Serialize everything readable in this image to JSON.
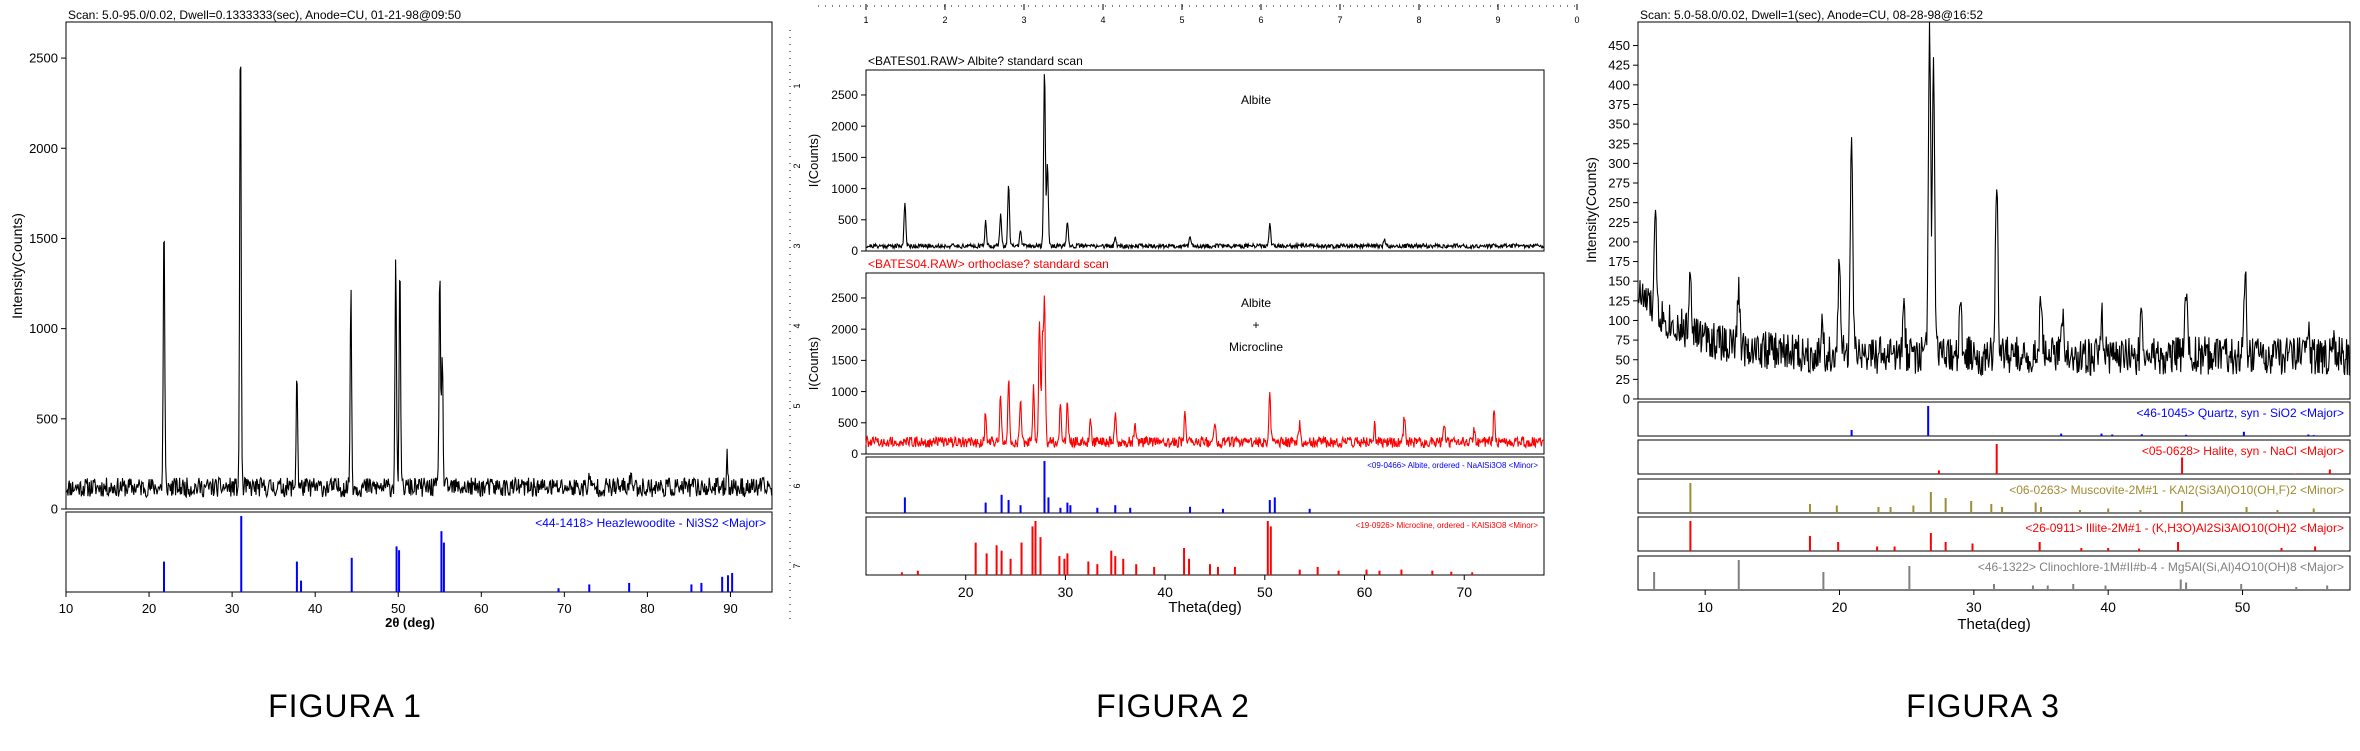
{
  "captions": [
    "FIGURA 1",
    "FIGURA 2",
    "FIGURA 3"
  ],
  "colors": {
    "black": "#000000",
    "blue": "#0000ff",
    "red": "#ff0000",
    "olive": "#a08c32",
    "gray": "#808080"
  },
  "chart_data": [
    {
      "type": "line",
      "header": "Scan: 5.0-95.0/0.02, Dwell=0.1333333(sec), Anode=CU, 01-21-98@09:50",
      "xlabel": "2θ (deg)",
      "ylabel": "Intensity(Counts)",
      "xlim": [
        10,
        95
      ],
      "ylim": [
        0,
        2700
      ],
      "xticks": [
        "10",
        "20",
        "30",
        "40",
        "50",
        "60",
        "70",
        "80",
        "90"
      ],
      "yticks": [
        "0",
        "500",
        "1000",
        "1500",
        "2000",
        "2500"
      ],
      "baseline": 120,
      "peaks": [
        {
          "x": 21.8,
          "y": 1620
        },
        {
          "x": 31.0,
          "y": 2720
        },
        {
          "x": 37.8,
          "y": 780
        },
        {
          "x": 44.3,
          "y": 1230
        },
        {
          "x": 49.7,
          "y": 1450
        },
        {
          "x": 50.2,
          "y": 1340
        },
        {
          "x": 55.0,
          "y": 1350
        },
        {
          "x": 55.3,
          "y": 900
        },
        {
          "x": 89.6,
          "y": 320
        },
        {
          "x": 78.0,
          "y": 220
        },
        {
          "x": 73.0,
          "y": 180
        }
      ],
      "reference_panels": [
        {
          "label": "<44-1418> Heazlewoodite - Ni3S2 <Major>",
          "color": "#0000ff",
          "sticks": [
            [
              21.8,
              40
            ],
            [
              31.1,
              100
            ],
            [
              37.8,
              40
            ],
            [
              38.3,
              15
            ],
            [
              44.4,
              45
            ],
            [
              49.8,
              60
            ],
            [
              50.1,
              55
            ],
            [
              55.2,
              80
            ],
            [
              55.5,
              65
            ],
            [
              69.3,
              5
            ],
            [
              73.0,
              10
            ],
            [
              77.8,
              12
            ],
            [
              85.3,
              10
            ],
            [
              86.5,
              12
            ],
            [
              89.0,
              20
            ],
            [
              89.7,
              22
            ],
            [
              90.2,
              25
            ]
          ]
        }
      ]
    },
    {
      "type": "line",
      "top_axis_ticks": [
        "1",
        "2",
        "3",
        "4",
        "5",
        "6",
        "7",
        "8",
        "9",
        "0"
      ],
      "right_axis_ticks": [
        "1",
        "2",
        "3",
        "4",
        "5",
        "6",
        "7"
      ],
      "xlabel": "Theta(deg)",
      "xlim": [
        10,
        78
      ],
      "xticks": [
        "20",
        "30",
        "40",
        "50",
        "60",
        "70"
      ],
      "panels": [
        {
          "header": "<BATES01.RAW> Albite? standard scan",
          "annotation": [
            "Albite"
          ],
          "color": "#000000",
          "ylabel": "I(Counts)",
          "ylim": [
            0,
            2900
          ],
          "yticks": [
            "0",
            "500",
            "1000",
            "1500",
            "2000",
            "2500"
          ],
          "baseline": 80,
          "peaks": [
            {
              "x": 13.9,
              "y": 800
            },
            {
              "x": 22.0,
              "y": 500
            },
            {
              "x": 23.5,
              "y": 600
            },
            {
              "x": 24.3,
              "y": 1080
            },
            {
              "x": 25.5,
              "y": 350
            },
            {
              "x": 27.9,
              "y": 2900
            },
            {
              "x": 28.2,
              "y": 1400
            },
            {
              "x": 30.2,
              "y": 450
            },
            {
              "x": 35.0,
              "y": 230
            },
            {
              "x": 42.5,
              "y": 250
            },
            {
              "x": 50.5,
              "y": 430
            },
            {
              "x": 62.0,
              "y": 180
            }
          ]
        },
        {
          "header": "<BATES04.RAW> orthoclase? standard scan",
          "annotation": [
            "Albite",
            "+",
            "Microcline"
          ],
          "color": "#ff0000",
          "ylabel": "I(Counts)",
          "ylim": [
            0,
            2900
          ],
          "yticks": [
            "0",
            "500",
            "1000",
            "1500",
            "2000",
            "2500"
          ],
          "baseline": 190,
          "peaks": [
            {
              "x": 22.0,
              "y": 700
            },
            {
              "x": 23.5,
              "y": 950
            },
            {
              "x": 24.3,
              "y": 1200
            },
            {
              "x": 25.5,
              "y": 900
            },
            {
              "x": 26.8,
              "y": 1050
            },
            {
              "x": 27.4,
              "y": 2200
            },
            {
              "x": 27.7,
              "y": 1800
            },
            {
              "x": 27.9,
              "y": 2400
            },
            {
              "x": 29.5,
              "y": 800
            },
            {
              "x": 30.2,
              "y": 900
            },
            {
              "x": 32.5,
              "y": 600
            },
            {
              "x": 35.0,
              "y": 700
            },
            {
              "x": 37.0,
              "y": 500
            },
            {
              "x": 42.0,
              "y": 700
            },
            {
              "x": 45.0,
              "y": 500
            },
            {
              "x": 50.5,
              "y": 1030
            },
            {
              "x": 53.5,
              "y": 500
            },
            {
              "x": 61.0,
              "y": 450
            },
            {
              "x": 64.0,
              "y": 600
            },
            {
              "x": 68.0,
              "y": 420
            },
            {
              "x": 71.0,
              "y": 400
            },
            {
              "x": 73.0,
              "y": 750
            }
          ]
        }
      ],
      "reference_panels": [
        {
          "label": "<09-0466> Albite, ordered - NaAlSi3O8 <Minor>",
          "color": "#0000ff",
          "sticks": [
            [
              13.9,
              30
            ],
            [
              22.0,
              20
            ],
            [
              23.6,
              35
            ],
            [
              24.3,
              25
            ],
            [
              25.5,
              15
            ],
            [
              27.9,
              100
            ],
            [
              28.3,
              30
            ],
            [
              29.5,
              10
            ],
            [
              30.2,
              20
            ],
            [
              30.5,
              15
            ],
            [
              33.2,
              10
            ],
            [
              35.0,
              15
            ],
            [
              36.5,
              10
            ],
            [
              42.5,
              12
            ],
            [
              45.8,
              8
            ],
            [
              50.5,
              25
            ],
            [
              51.0,
              30
            ],
            [
              54.5,
              8
            ]
          ]
        },
        {
          "label": "<19-0926> Microcline, ordered - KAlSi3O8 <Minor>",
          "color": "#ff0000",
          "sticks": [
            [
              13.6,
              5
            ],
            [
              15.2,
              8
            ],
            [
              21.0,
              60
            ],
            [
              22.1,
              40
            ],
            [
              23.1,
              55
            ],
            [
              23.6,
              45
            ],
            [
              24.5,
              30
            ],
            [
              25.6,
              60
            ],
            [
              26.7,
              90
            ],
            [
              27.0,
              100
            ],
            [
              27.5,
              70
            ],
            [
              29.4,
              35
            ],
            [
              29.9,
              30
            ],
            [
              30.2,
              40
            ],
            [
              32.3,
              25
            ],
            [
              33.2,
              20
            ],
            [
              34.6,
              45
            ],
            [
              35.0,
              35
            ],
            [
              35.8,
              30
            ],
            [
              37.1,
              20
            ],
            [
              38.9,
              15
            ],
            [
              41.9,
              50
            ],
            [
              42.4,
              30
            ],
            [
              44.5,
              20
            ],
            [
              45.3,
              15
            ],
            [
              47.0,
              15
            ],
            [
              50.3,
              100
            ],
            [
              50.6,
              90
            ],
            [
              53.5,
              10
            ],
            [
              55.3,
              15
            ],
            [
              57.4,
              8
            ],
            [
              60.2,
              10
            ],
            [
              61.5,
              8
            ],
            [
              63.7,
              10
            ],
            [
              66.8,
              8
            ],
            [
              68.7,
              6
            ],
            [
              70.8,
              5
            ]
          ]
        }
      ]
    },
    {
      "type": "line",
      "header": "Scan: 5.0-58.0/0.02, Dwell=1(sec), Anode=CU, 08-28-98@16:52",
      "xlabel": "Theta(deg)",
      "ylabel": "Intensity(Counts)",
      "xlim": [
        5,
        58
      ],
      "ylim": [
        0,
        480
      ],
      "xticks": [
        "10",
        "20",
        "30",
        "40",
        "50"
      ],
      "yticks": [
        "0",
        "25",
        "50",
        "75",
        "100",
        "125",
        "150",
        "175",
        "200",
        "225",
        "250",
        "275",
        "300",
        "325",
        "350",
        "375",
        "400",
        "425",
        "450"
      ],
      "baseline": 55,
      "peaks": [
        {
          "x": 6.3,
          "y": 170
        },
        {
          "x": 8.9,
          "y": 145
        },
        {
          "x": 12.5,
          "y": 130
        },
        {
          "x": 18.7,
          "y": 95
        },
        {
          "x": 20.0,
          "y": 170
        },
        {
          "x": 20.9,
          "y": 350
        },
        {
          "x": 24.8,
          "y": 110
        },
        {
          "x": 26.7,
          "y": 480
        },
        {
          "x": 27.0,
          "y": 420
        },
        {
          "x": 29.0,
          "y": 120
        },
        {
          "x": 31.7,
          "y": 290
        },
        {
          "x": 35.0,
          "y": 140
        },
        {
          "x": 36.6,
          "y": 100
        },
        {
          "x": 39.5,
          "y": 110
        },
        {
          "x": 42.5,
          "y": 110
        },
        {
          "x": 45.8,
          "y": 150
        },
        {
          "x": 50.2,
          "y": 170
        },
        {
          "x": 54.9,
          "y": 95
        },
        {
          "x": 56.7,
          "y": 80
        }
      ],
      "reference_panels": [
        {
          "label": "<46-1045> Quartz, syn - SiO2 <Major>",
          "color": "#0000ff",
          "sticks": [
            [
              20.9,
              20
            ],
            [
              26.6,
              100
            ],
            [
              36.5,
              8
            ],
            [
              39.5,
              8
            ],
            [
              40.3,
              5
            ],
            [
              42.5,
              6
            ],
            [
              45.8,
              4
            ],
            [
              50.1,
              14
            ],
            [
              54.9,
              5
            ],
            [
              55.3,
              3
            ]
          ]
        },
        {
          "label": "<05-0628> Halite, syn - NaCl <Major>",
          "color": "#ff0000",
          "sticks": [
            [
              27.4,
              12
            ],
            [
              31.7,
              100
            ],
            [
              45.5,
              55
            ],
            [
              53.9,
              2
            ],
            [
              56.5,
              15
            ]
          ]
        },
        {
          "label": "<06-0263> Muscovite-2M#1 - KAl2(Si3Al)O10(OH,F)2 <Minor>",
          "color": "#a08c32",
          "sticks": [
            [
              8.9,
              100
            ],
            [
              17.8,
              30
            ],
            [
              19.8,
              25
            ],
            [
              22.9,
              20
            ],
            [
              23.8,
              20
            ],
            [
              25.5,
              25
            ],
            [
              26.8,
              70
            ],
            [
              27.9,
              50
            ],
            [
              29.8,
              40
            ],
            [
              31.3,
              30
            ],
            [
              32.1,
              20
            ],
            [
              34.6,
              35
            ],
            [
              35.0,
              20
            ],
            [
              37.9,
              10
            ],
            [
              40.0,
              15
            ],
            [
              42.4,
              10
            ],
            [
              45.5,
              40
            ],
            [
              50.3,
              20
            ],
            [
              52.6,
              10
            ],
            [
              55.3,
              15
            ]
          ]
        },
        {
          "label": "<26-0911> Illite-2M#1 - (K,H3O)Al2Si3AlO10(OH)2 <Major>",
          "color": "#ff0000",
          "sticks": [
            [
              8.9,
              100
            ],
            [
              17.8,
              50
            ],
            [
              19.9,
              30
            ],
            [
              22.8,
              15
            ],
            [
              24.1,
              15
            ],
            [
              26.8,
              60
            ],
            [
              27.9,
              30
            ],
            [
              29.9,
              25
            ],
            [
              34.9,
              30
            ],
            [
              38.0,
              10
            ],
            [
              40.0,
              10
            ],
            [
              42.3,
              8
            ],
            [
              45.2,
              30
            ],
            [
              52.9,
              10
            ],
            [
              55.4,
              15
            ]
          ]
        },
        {
          "label": "<46-1322> Clinochlore-1M#II#b-4 - Mg5Al(Si,Al)4O10(OH)8 <Major>",
          "color": "#808080",
          "sticks": [
            [
              6.2,
              60
            ],
            [
              12.5,
              100
            ],
            [
              18.8,
              60
            ],
            [
              25.2,
              80
            ],
            [
              31.5,
              20
            ],
            [
              34.4,
              15
            ],
            [
              35.5,
              15
            ],
            [
              37.4,
              20
            ],
            [
              39.8,
              15
            ],
            [
              45.4,
              35
            ],
            [
              45.8,
              25
            ],
            [
              49.9,
              20
            ],
            [
              54.0,
              10
            ],
            [
              56.3,
              15
            ]
          ]
        }
      ]
    }
  ]
}
